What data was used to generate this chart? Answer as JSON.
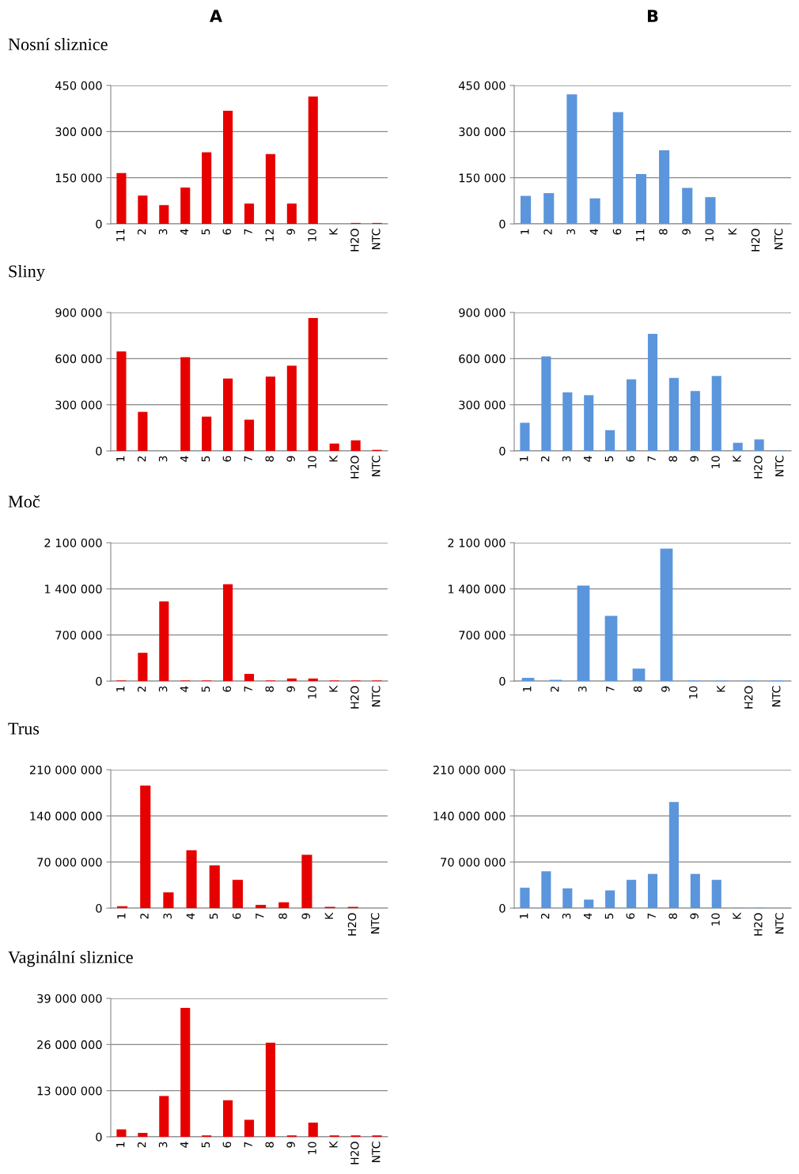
{
  "chart_data": [
    {
      "type": "bar",
      "title": "Nosní sliznice",
      "annotations": [
        "A"
      ],
      "color": "#e60000",
      "grid": "y",
      "categories": [
        "11",
        "2",
        "3",
        "4",
        "5",
        "6",
        "7",
        "12",
        "9",
        "10",
        "K",
        "H2O",
        "NTC"
      ],
      "values": [
        165000,
        92000,
        61000,
        118000,
        233000,
        368000,
        66000,
        227000,
        66000,
        414000,
        0,
        3000,
        3000
      ],
      "ylim": [
        0,
        450000
      ],
      "yticks": [
        0,
        {
          "value": 150000,
          "label": "150 000"
        },
        {
          "value": 300000,
          "label": "300 000"
        },
        {
          "value": 450000,
          "label": "450 000"
        }
      ]
    },
    {
      "type": "bar",
      "annotations": [
        "B"
      ],
      "color": "#5b95dc",
      "grid": "y",
      "categories": [
        "1",
        "2",
        "3",
        "4",
        "6",
        "11",
        "8",
        "9",
        "10",
        "K",
        "H2O",
        "NTC"
      ],
      "values": [
        91000,
        100000,
        421000,
        83000,
        363000,
        162000,
        239000,
        117000,
        87000,
        0,
        2000,
        2000
      ],
      "ylim": [
        0,
        450000
      ],
      "yticks": [
        0,
        {
          "value": 150000,
          "label": "150 000"
        },
        {
          "value": 300000,
          "label": "300 000"
        },
        {
          "value": 450000,
          "label": "450 000"
        }
      ]
    },
    {
      "type": "bar",
      "title": "Sliny",
      "color": "#e60000",
      "grid": "y",
      "categories": [
        "1",
        "2",
        "3",
        "4",
        "5",
        "6",
        "7",
        "8",
        "9",
        "10",
        "K",
        "H2O",
        "NTC"
      ],
      "values": [
        647000,
        254000,
        0,
        609000,
        223000,
        471000,
        203000,
        483000,
        554000,
        864000,
        48000,
        69000,
        7000
      ],
      "ylim": [
        0,
        900000
      ],
      "yticks": [
        0,
        {
          "value": 300000,
          "label": "300 000"
        },
        {
          "value": 600000,
          "label": "600 000"
        },
        {
          "value": 900000,
          "label": "900 000"
        }
      ]
    },
    {
      "type": "bar",
      "color": "#5b95dc",
      "grid": "y",
      "categories": [
        "1",
        "2",
        "3",
        "4",
        "5",
        "6",
        "7",
        "8",
        "9",
        "10",
        "K",
        "H2O",
        "NTC"
      ],
      "values": [
        183000,
        615000,
        381000,
        363000,
        135000,
        466000,
        761000,
        475000,
        389000,
        487000,
        53000,
        75000,
        3000
      ],
      "ylim": [
        0,
        900000
      ],
      "yticks": [
        0,
        {
          "value": 300000,
          "label": "300 000"
        },
        {
          "value": 600000,
          "label": "600 000"
        },
        {
          "value": 900000,
          "label": "900 000"
        }
      ]
    },
    {
      "type": "bar",
      "title": "Moč",
      "color": "#e60000",
      "grid": "y",
      "categories": [
        "1",
        "2",
        "3",
        "4",
        "5",
        "6",
        "7",
        "8",
        "9",
        "10",
        "K",
        "H2O",
        "NTC"
      ],
      "values": [
        10000,
        430000,
        1210000,
        10000,
        10000,
        1470000,
        110000,
        10000,
        40000,
        40000,
        10000,
        10000,
        10000
      ],
      "ylim": [
        0,
        2100000
      ],
      "yticks": [
        0,
        {
          "value": 700000,
          "label": "700 000"
        },
        {
          "value": 1400000,
          "label": "1 400 000"
        },
        {
          "value": 2100000,
          "label": "2 100 000"
        }
      ]
    },
    {
      "type": "bar",
      "color": "#5b95dc",
      "grid": "y",
      "categories": [
        "1",
        "2",
        "3",
        "7",
        "8",
        "9",
        "10",
        "K",
        "H2O",
        "NTC"
      ],
      "values": [
        50000,
        20000,
        1450000,
        990000,
        190000,
        2010000,
        10000,
        10000,
        10000,
        10000
      ],
      "ylim": [
        0,
        2100000
      ],
      "yticks": [
        0,
        {
          "value": 700000,
          "label": "700 000"
        },
        {
          "value": 1400000,
          "label": "1 400 000"
        },
        {
          "value": 2100000,
          "label": "2 100 000"
        }
      ]
    },
    {
      "type": "bar",
      "title": "Trus",
      "color": "#e60000",
      "grid": "y",
      "categories": [
        "1",
        "2",
        "3",
        "4",
        "5",
        "6",
        "7",
        "8",
        "9",
        "K",
        "H2O",
        "NTC"
      ],
      "values": [
        3000000,
        186000000,
        24000000,
        88000000,
        65000000,
        43000000,
        5000000,
        9000000,
        81000000,
        2000000,
        2000000,
        0
      ],
      "ylim": [
        0,
        210000000
      ],
      "yticks": [
        0,
        {
          "value": 70000000,
          "label": "70 000 000"
        },
        {
          "value": 140000000,
          "label": "140 000 000"
        },
        {
          "value": 210000000,
          "label": "210 000 000"
        }
      ]
    },
    {
      "type": "bar",
      "color": "#5b95dc",
      "grid": "y",
      "categories": [
        "1",
        "2",
        "3",
        "4",
        "5",
        "6",
        "7",
        "8",
        "9",
        "10",
        "K",
        "H2O",
        "NTC"
      ],
      "values": [
        31000000,
        56000000,
        30000000,
        13000000,
        27000000,
        43000000,
        52000000,
        161000000,
        52000000,
        43000000,
        1000000,
        1000000,
        0
      ],
      "ylim": [
        0,
        210000000
      ],
      "yticks": [
        0,
        {
          "value": 70000000,
          "label": "70 000 000"
        },
        {
          "value": 140000000,
          "label": "140 000 000"
        },
        {
          "value": 210000000,
          "label": "210 000 000"
        }
      ]
    },
    {
      "type": "bar",
      "title": "Vaginální sliznice",
      "color": "#e60000",
      "grid": "y",
      "categories": [
        "1",
        "2",
        "3",
        "4",
        "5",
        "6",
        "7",
        "8",
        "9",
        "10",
        "K",
        "H2O",
        "NTC"
      ],
      "values": [
        2100000,
        1100000,
        11500000,
        36300000,
        400000,
        10300000,
        4800000,
        26500000,
        400000,
        4000000,
        400000,
        400000,
        400000
      ],
      "ylim": [
        0,
        39000000
      ],
      "yticks": [
        0,
        {
          "value": 13000000,
          "label": "13 000 000"
        },
        {
          "value": 26000000,
          "label": "26 000 000"
        },
        {
          "value": 39000000,
          "label": "39 000 000"
        }
      ]
    }
  ]
}
